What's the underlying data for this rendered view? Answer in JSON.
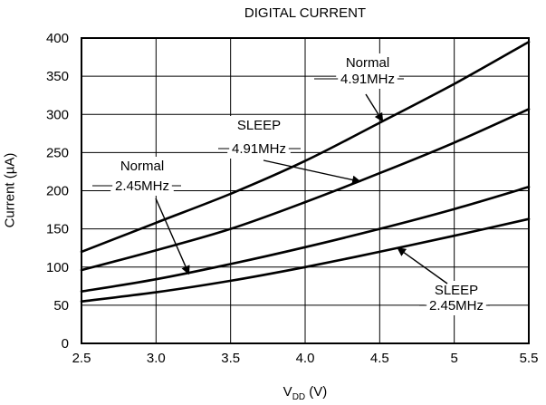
{
  "chart_data": {
    "type": "line",
    "title": "DIGITAL CURRENT",
    "xlabel": {
      "main": "V",
      "sub": "DD",
      "unit": " (V)"
    },
    "ylabel": "Current (µA)",
    "xlim": [
      2.5,
      5.5
    ],
    "ylim": [
      0,
      400
    ],
    "grid": true,
    "x_ticks": [
      "2.5",
      "3.0",
      "3.5",
      "4.0",
      "4.5",
      "5",
      "5.5"
    ],
    "y_ticks": [
      "0",
      "50",
      "100",
      "150",
      "200",
      "250",
      "300",
      "350",
      "400"
    ],
    "x": [
      2.5,
      3.0,
      3.5,
      4.0,
      4.5,
      5.0,
      5.5
    ],
    "series": [
      {
        "name": "Normal 4.91MHz",
        "values": [
          120,
          158,
          196,
          239,
          289,
          340,
          395
        ]
      },
      {
        "name": "SLEEP 4.91MHz",
        "values": [
          96,
          122,
          150,
          185,
          223,
          263,
          307
        ]
      },
      {
        "name": "Normal 2.45MHz",
        "values": [
          68,
          84,
          104,
          126,
          150,
          176,
          205
        ]
      },
      {
        "name": "SLEEP 2.45MHz",
        "values": [
          55,
          67,
          82,
          100,
          120,
          141,
          163
        ]
      }
    ],
    "annotations": [
      {
        "lines": [
          "Normal",
          "4.91MHz"
        ],
        "series": 0,
        "point": [
          4.52,
          291
        ]
      },
      {
        "lines": [
          "SLEEP",
          "4.91MHz"
        ],
        "series": 1,
        "point": [
          4.37,
          212
        ]
      },
      {
        "lines": [
          "Normal",
          "2.45MHz"
        ],
        "series": 2,
        "point": [
          3.22,
          91
        ]
      },
      {
        "lines": [
          "SLEEP",
          "2.45MHz"
        ],
        "series": 3,
        "point": [
          4.62,
          125
        ]
      }
    ]
  }
}
